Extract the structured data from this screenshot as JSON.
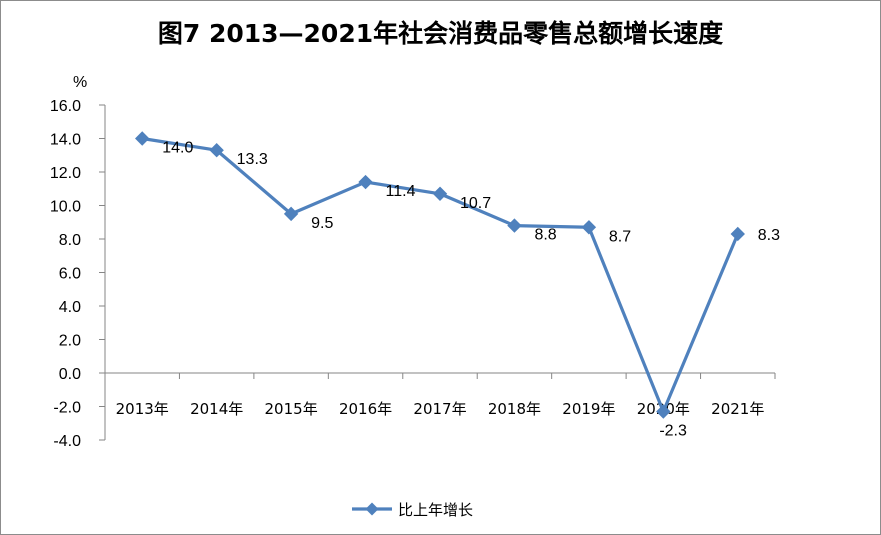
{
  "chart_data": {
    "type": "line",
    "title": "图7  2013—2021年社会消费品零售总额增长速度",
    "ylabel": "%",
    "ylim": [
      -4,
      16
    ],
    "yticks": [
      "16.0",
      "14.0",
      "12.0",
      "10.0",
      "8.0",
      "6.0",
      "4.0",
      "2.0",
      "0.0",
      "-2.0",
      "-4.0"
    ],
    "categories": [
      "2013年",
      "2014年",
      "2015年",
      "2016年",
      "2017年",
      "2018年",
      "2019年",
      "2020年",
      "2021年"
    ],
    "series": [
      {
        "name": "比上年增长",
        "values": [
          14.0,
          13.3,
          9.5,
          11.4,
          10.7,
          8.8,
          8.7,
          -2.3,
          8.3
        ],
        "labels": [
          "14.0",
          "13.3",
          "9.5",
          "11.4",
          "10.7",
          "8.8",
          "8.7",
          "-2.3",
          "8.3"
        ],
        "color": "#4f81bd",
        "marker": "diamond"
      }
    ],
    "grid": false,
    "legend": "bottom"
  }
}
